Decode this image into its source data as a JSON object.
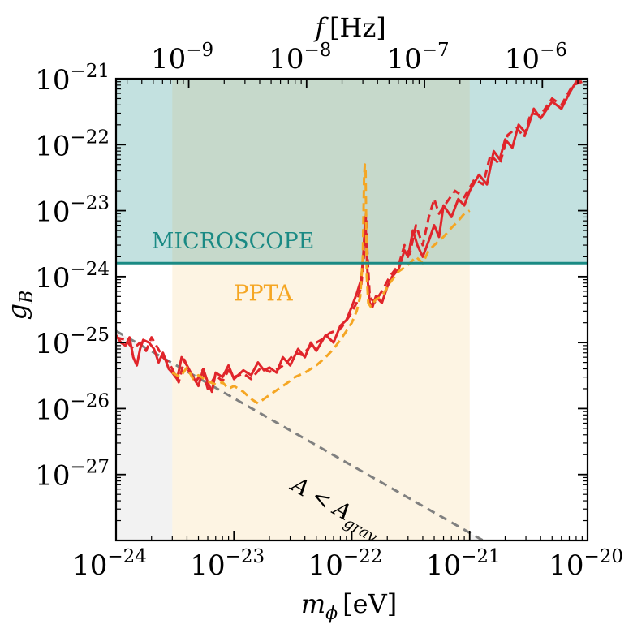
{
  "chart_data": {
    "type": "line",
    "x_scale": "log",
    "y_scale": "log",
    "xlim": [
      1e-24,
      1e-20
    ],
    "ylim": [
      1e-28,
      1e-21
    ],
    "xlabel_main": "m",
    "xlabel_sub": "ϕ",
    "xlabel_unit": "[eV]",
    "ylabel_main": "g",
    "ylabel_sub": "B",
    "top_axis_label_main": "f",
    "top_axis_label_unit": "[Hz]",
    "x_ticks": [
      {
        "value": 1e-24,
        "base": "10",
        "exp": "−24"
      },
      {
        "value": 1e-23,
        "base": "10",
        "exp": "−23"
      },
      {
        "value": 1e-22,
        "base": "10",
        "exp": "−22"
      },
      {
        "value": 1e-21,
        "base": "10",
        "exp": "−21"
      },
      {
        "value": 1e-20,
        "base": "10",
        "exp": "−20"
      }
    ],
    "y_ticks": [
      {
        "value": 1e-21,
        "base": "10",
        "exp": "−21"
      },
      {
        "value": 1e-22,
        "base": "10",
        "exp": "−22"
      },
      {
        "value": 1e-23,
        "base": "10",
        "exp": "−23"
      },
      {
        "value": 1e-24,
        "base": "10",
        "exp": "−24"
      },
      {
        "value": 1e-25,
        "base": "10",
        "exp": "−25"
      },
      {
        "value": 1e-26,
        "base": "10",
        "exp": "−26"
      },
      {
        "value": 1e-27,
        "base": "10",
        "exp": "−27"
      }
    ],
    "top_ticks": [
      {
        "value": 1e-09,
        "base": "10",
        "exp": "−9"
      },
      {
        "value": 1e-08,
        "base": "10",
        "exp": "−8"
      },
      {
        "value": 1e-07,
        "base": "10",
        "exp": "−7"
      },
      {
        "value": 1e-06,
        "base": "10",
        "exp": "−6"
      }
    ],
    "hz_per_ev": 241800000000000.0,
    "regions": [
      {
        "name": "MICROSCOPE",
        "label": "MICROSCOPE",
        "color": "#1a8a84",
        "fill": "#c3e1e0",
        "y_limit": 1.6e-24,
        "label_x": 2e-24,
        "label_y": 2.7e-24
      },
      {
        "name": "PPTA",
        "label": "PPTA",
        "color": "#f5a623",
        "fill": "#fdf4e3",
        "x_range": [
          3e-24,
          1e-21
        ],
        "label_x": 1e-23,
        "label_y": 4.3e-25
      },
      {
        "name": "grav",
        "label_main": "A < A",
        "label_sub": "grav",
        "color": "#808080",
        "fill": "#f2f2f2",
        "line_points": [
          [
            1e-24,
            1.5e-25
          ],
          [
            1.3e-21,
            1e-28
          ]
        ],
        "label_x": 3e-23,
        "label_y": 6e-28
      }
    ],
    "series": [
      {
        "name": "red-solid",
        "color": "#e0252b",
        "dash": "solid",
        "points": [
          [
            1e-24,
            1.3e-25
          ],
          [
            1.1e-24,
            1e-25
          ],
          [
            1.2e-24,
            9e-26
          ],
          [
            1.3e-24,
            1.2e-25
          ],
          [
            1.4e-24,
            6e-26
          ],
          [
            1.5e-24,
            4.5e-26
          ],
          [
            1.6e-24,
            8e-26
          ],
          [
            1.7e-24,
            1.1e-25
          ],
          [
            1.9e-24,
            1e-25
          ],
          [
            2.1e-24,
            8e-26
          ],
          [
            2.3e-24,
            5e-26
          ],
          [
            2.5e-24,
            7e-26
          ],
          [
            2.8e-24,
            4e-26
          ],
          [
            3e-24,
            3.5e-26
          ],
          [
            3.3e-24,
            2.8e-26
          ],
          [
            3.6e-24,
            6e-26
          ],
          [
            4e-24,
            4.5e-26
          ],
          [
            4.5e-24,
            3e-26
          ],
          [
            5e-24,
            2.2e-26
          ],
          [
            5.5e-24,
            4e-26
          ],
          [
            6e-24,
            2.5e-26
          ],
          [
            6.5e-24,
            1.8e-26
          ],
          [
            7e-24,
            3.5e-26
          ],
          [
            8e-24,
            3e-26
          ],
          [
            9e-24,
            4.5e-26
          ],
          [
            1e-23,
            2.8e-26
          ],
          [
            1.2e-23,
            3.8e-26
          ],
          [
            1.4e-23,
            3.2e-26
          ],
          [
            1.6e-23,
            5e-26
          ],
          [
            1.8e-23,
            3.8e-26
          ],
          [
            2e-23,
            4.2e-26
          ],
          [
            2.3e-23,
            3.5e-26
          ],
          [
            2.6e-23,
            6e-26
          ],
          [
            3e-23,
            4.5e-26
          ],
          [
            3.5e-23,
            8e-26
          ],
          [
            4e-23,
            6e-26
          ],
          [
            4.5e-23,
            1e-25
          ],
          [
            5e-23,
            7.5e-26
          ],
          [
            6e-23,
            1.3e-25
          ],
          [
            7e-23,
            1e-25
          ],
          [
            8e-23,
            1.8e-25
          ],
          [
            9e-23,
            2.2e-25
          ],
          [
            1e-22,
            3.5e-25
          ],
          [
            1.1e-22,
            5.5e-25
          ],
          [
            1.2e-22,
            9e-25
          ],
          [
            1.25e-22,
            2e-24
          ],
          [
            1.3e-22,
            8e-24
          ],
          [
            1.33e-22,
            3e-24
          ],
          [
            1.37e-22,
            8e-25
          ],
          [
            1.42e-22,
            4e-25
          ],
          [
            1.5e-22,
            3.5e-25
          ],
          [
            1.6e-22,
            5e-25
          ],
          [
            1.8e-22,
            4e-25
          ],
          [
            2e-22,
            7e-25
          ],
          [
            2.2e-22,
            1e-24
          ],
          [
            2.5e-22,
            1.3e-24
          ],
          [
            2.8e-22,
            2.5e-24
          ],
          [
            3e-22,
            2e-24
          ],
          [
            3.3e-22,
            5e-24
          ],
          [
            3.6e-22,
            3e-24
          ],
          [
            4e-22,
            2e-24
          ],
          [
            4.5e-22,
            3.5e-24
          ],
          [
            5e-22,
            6e-24
          ],
          [
            5.5e-22,
            4e-24
          ],
          [
            6e-22,
            1.2e-23
          ],
          [
            7e-22,
            8e-24
          ],
          [
            8e-22,
            1.5e-23
          ],
          [
            9e-22,
            1.2e-23
          ],
          [
            1e-21,
            2e-23
          ],
          [
            1.2e-21,
            3.5e-23
          ],
          [
            1.4e-21,
            2.5e-23
          ],
          [
            1.6e-21,
            8e-23
          ],
          [
            1.8e-21,
            6e-23
          ],
          [
            2e-21,
            1.2e-22
          ],
          [
            2.3e-21,
            9e-23
          ],
          [
            2.6e-21,
            2e-22
          ],
          [
            3e-21,
            1.5e-22
          ],
          [
            3.5e-21,
            3.5e-22
          ],
          [
            4e-21,
            2.5e-22
          ],
          [
            5e-21,
            4.5e-22
          ],
          [
            6e-21,
            3.5e-22
          ],
          [
            7e-21,
            6e-22
          ],
          [
            8e-21,
            9e-22
          ],
          [
            9e-21,
            1e-21
          ]
        ]
      },
      {
        "name": "red-dashed",
        "color": "#e0252b",
        "dash": "dashed",
        "points": [
          [
            1e-24,
            1.2e-25
          ],
          [
            1.2e-24,
            1.1e-25
          ],
          [
            1.4e-24,
            8e-26
          ],
          [
            1.6e-24,
            1e-25
          ],
          [
            1.8e-24,
            7.5e-26
          ],
          [
            2e-24,
            1.2e-25
          ],
          [
            2.2e-24,
            9e-26
          ],
          [
            2.5e-24,
            6e-26
          ],
          [
            2.8e-24,
            5e-26
          ],
          [
            3e-24,
            4e-26
          ],
          [
            3.4e-24,
            2.5e-26
          ],
          [
            3.8e-24,
            5.5e-26
          ],
          [
            4.2e-24,
            3.5e-26
          ],
          [
            4.8e-24,
            2.6e-26
          ],
          [
            5.4e-24,
            3.8e-26
          ],
          [
            6e-24,
            2e-26
          ],
          [
            7e-24,
            3.2e-26
          ],
          [
            8e-24,
            2.6e-26
          ],
          [
            9e-24,
            3.8e-26
          ],
          [
            1e-23,
            3e-26
          ],
          [
            1.2e-23,
            3.4e-26
          ],
          [
            1.4e-23,
            2.8e-26
          ],
          [
            1.7e-23,
            4.2e-26
          ],
          [
            2e-23,
            3.6e-26
          ],
          [
            2.4e-23,
            4e-26
          ],
          [
            2.8e-23,
            5e-26
          ],
          [
            3.3e-23,
            7e-26
          ],
          [
            3.8e-23,
            6.5e-26
          ],
          [
            4.5e-23,
            9e-26
          ],
          [
            5.5e-23,
            1.1e-25
          ],
          [
            6.5e-23,
            1.4e-25
          ],
          [
            8e-23,
            1.6e-25
          ],
          [
            9.5e-23,
            2.5e-25
          ],
          [
            1.1e-22,
            4e-25
          ],
          [
            1.2e-22,
            7e-25
          ],
          [
            1.28e-22,
            2.5e-24
          ],
          [
            1.32e-22,
            9e-24
          ],
          [
            1.36e-22,
            2e-24
          ],
          [
            1.42e-22,
            5e-25
          ],
          [
            1.55e-22,
            4e-25
          ],
          [
            1.8e-22,
            6e-25
          ],
          [
            2.1e-22,
            1e-24
          ],
          [
            2.5e-22,
            1.5e-24
          ],
          [
            2.8e-22,
            3e-24
          ],
          [
            3.1e-22,
            2.2e-24
          ],
          [
            3.5e-22,
            6e-24
          ],
          [
            4e-22,
            3e-24
          ],
          [
            4.5e-22,
            8e-24
          ],
          [
            5e-22,
            1.5e-23
          ],
          [
            5.5e-22,
            9e-24
          ],
          [
            6.5e-22,
            1.4e-23
          ],
          [
            7.5e-22,
            2e-23
          ],
          [
            9e-22,
            1.6e-23
          ],
          [
            1.1e-21,
            3e-23
          ],
          [
            1.3e-21,
            2.5e-23
          ],
          [
            1.5e-21,
            7e-23
          ],
          [
            1.8e-21,
            5e-23
          ],
          [
            2.1e-21,
            1.4e-22
          ],
          [
            2.5e-21,
            1.8e-22
          ],
          [
            2.9e-21,
            1.3e-22
          ],
          [
            3.3e-21,
            3e-22
          ],
          [
            4e-21,
            2.8e-22
          ],
          [
            5e-21,
            5e-22
          ],
          [
            6e-21,
            4e-22
          ],
          [
            7.5e-21,
            8e-22
          ],
          [
            9e-21,
            9e-22
          ]
        ]
      },
      {
        "name": "orange-dashed",
        "color": "#f5a623",
        "dash": "dashed",
        "points": [
          [
            3e-24,
            3.5e-26
          ],
          [
            3.5e-24,
            3e-26
          ],
          [
            4e-24,
            4.2e-26
          ],
          [
            4.5e-24,
            2.8e-26
          ],
          [
            5e-24,
            3.2e-26
          ],
          [
            6e-24,
            2.6e-26
          ],
          [
            7e-24,
            2.3e-26
          ],
          [
            8e-24,
            2.5e-26
          ],
          [
            9e-24,
            2e-26
          ],
          [
            1e-23,
            2.2e-26
          ],
          [
            1.2e-23,
            1.8e-26
          ],
          [
            1.4e-23,
            1.4e-26
          ],
          [
            1.6e-23,
            1.2e-26
          ],
          [
            1.8e-23,
            1.4e-26
          ],
          [
            2e-23,
            1.6e-26
          ],
          [
            2.4e-23,
            2e-26
          ],
          [
            2.8e-23,
            2.4e-26
          ],
          [
            3.3e-23,
            3e-26
          ],
          [
            4e-23,
            3.5e-26
          ],
          [
            5e-23,
            4.5e-26
          ],
          [
            6e-23,
            6e-26
          ],
          [
            7e-23,
            8e-26
          ],
          [
            8e-23,
            1.1e-25
          ],
          [
            9e-23,
            1.5e-25
          ],
          [
            1e-22,
            2e-25
          ],
          [
            1.1e-22,
            3e-25
          ],
          [
            1.18e-22,
            5e-25
          ],
          [
            1.24e-22,
            2e-24
          ],
          [
            1.27e-22,
            3e-23
          ],
          [
            1.29e-22,
            5e-23
          ],
          [
            1.31e-22,
            4e-23
          ],
          [
            1.34e-22,
            1e-24
          ],
          [
            1.38e-22,
            4e-25
          ],
          [
            1.45e-22,
            3.5e-25
          ],
          [
            1.6e-22,
            4.5e-25
          ],
          [
            1.8e-22,
            5e-25
          ],
          [
            2.1e-22,
            8e-25
          ],
          [
            2.5e-22,
            1.2e-24
          ],
          [
            3e-22,
            1.5e-24
          ],
          [
            3.5e-22,
            2e-24
          ],
          [
            4e-22,
            1.6e-24
          ],
          [
            4.5e-22,
            2.5e-24
          ],
          [
            5e-22,
            3e-24
          ],
          [
            6e-22,
            4e-24
          ],
          [
            7e-22,
            5.5e-24
          ],
          [
            8e-22,
            7e-24
          ],
          [
            9e-22,
            9e-24
          ],
          [
            1e-21,
            1e-23
          ]
        ]
      }
    ]
  }
}
